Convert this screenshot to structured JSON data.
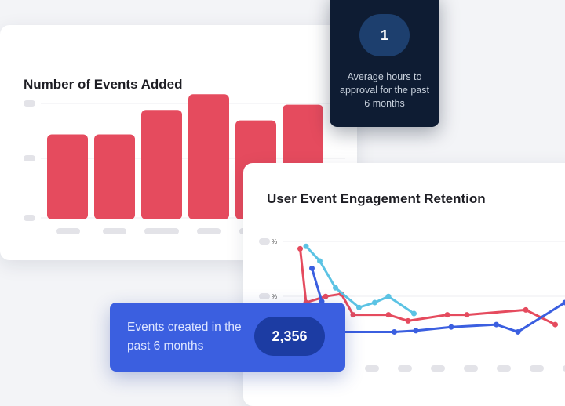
{
  "bar_chart": {
    "title": "Number of Events Added"
  },
  "line_chart": {
    "title": "User Event Engagement Retention",
    "y_tick_suffix": "%"
  },
  "hours_card": {
    "value": "1",
    "caption": "Average hours to approval for the past 6 months"
  },
  "events_card": {
    "caption": "Events created in the past 6 months",
    "value": "2,356"
  },
  "chart_data": [
    {
      "type": "bar",
      "title": "Number of Events Added",
      "categories": [
        "",
        "",
        "",
        "",
        "",
        ""
      ],
      "values": [
        1.63,
        1.63,
        2.1,
        2.4,
        1.9,
        2.2
      ],
      "ylim": [
        0,
        2.6
      ],
      "grid": true,
      "color": "#e54b5e"
    },
    {
      "type": "line",
      "title": "User Event Engagement Retention",
      "x": [
        0,
        1,
        2,
        3,
        4,
        5,
        6,
        7,
        8,
        9,
        10,
        11,
        12,
        13,
        14
      ],
      "ylim": [
        0,
        100
      ],
      "grid": true,
      "series": [
        {
          "color": "#e54b5e",
          "values": [
            {
              "x": 0.5,
              "y": 94
            },
            {
              "x": 0.8,
              "y": 50
            },
            {
              "x": 1.8,
              "y": 55
            },
            {
              "x": 2.6,
              "y": 57
            },
            {
              "x": 3.2,
              "y": 40
            },
            {
              "x": 5.0,
              "y": 40
            },
            {
              "x": 6.0,
              "y": 35
            },
            {
              "x": 8.0,
              "y": 40
            },
            {
              "x": 9.0,
              "y": 40
            },
            {
              "x": 12.0,
              "y": 44
            },
            {
              "x": 13.5,
              "y": 32
            }
          ]
        },
        {
          "color": "#5bc3e4",
          "values": [
            {
              "x": 0.8,
              "y": 96
            },
            {
              "x": 1.5,
              "y": 84
            },
            {
              "x": 2.3,
              "y": 62
            },
            {
              "x": 3.5,
              "y": 46
            },
            {
              "x": 4.3,
              "y": 50
            },
            {
              "x": 5.0,
              "y": 55
            },
            {
              "x": 6.3,
              "y": 41
            }
          ]
        },
        {
          "color": "#3b5fe0",
          "values": [
            {
              "x": 1.1,
              "y": 78
            },
            {
              "x": 1.6,
              "y": 51
            },
            {
              "x": 2.3,
              "y": 26
            },
            {
              "x": 5.3,
              "y": 26
            },
            {
              "x": 6.4,
              "y": 27
            },
            {
              "x": 8.2,
              "y": 30
            },
            {
              "x": 10.5,
              "y": 32
            },
            {
              "x": 11.6,
              "y": 26
            },
            {
              "x": 14.0,
              "y": 50
            }
          ]
        }
      ]
    }
  ]
}
